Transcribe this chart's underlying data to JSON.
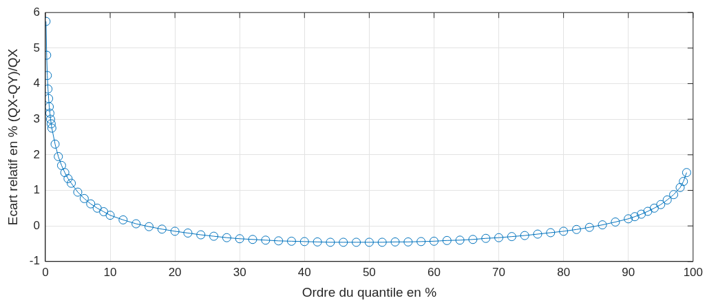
{
  "chart_data": {
    "type": "line",
    "xlabel": "Ordre du quantile en %",
    "ylabel": "Ecart relatif en % (QX-QY)/QX",
    "x": [
      0.1,
      0.2,
      0.3,
      0.4,
      0.5,
      0.6,
      0.7,
      0.8,
      0.9,
      1.0,
      1.5,
      2,
      2.5,
      3,
      3.5,
      4,
      5,
      6,
      7,
      8,
      9,
      10,
      12,
      14,
      16,
      18,
      20,
      22,
      24,
      26,
      28,
      30,
      32,
      34,
      36,
      38,
      40,
      42,
      44,
      46,
      48,
      50,
      52,
      54,
      56,
      58,
      60,
      62,
      64,
      66,
      68,
      70,
      72,
      74,
      76,
      78,
      80,
      82,
      84,
      86,
      88,
      90,
      91,
      92,
      93,
      94,
      95,
      96,
      97,
      98,
      98.5,
      99
    ],
    "series": [
      {
        "color": "#0072bd",
        "values": [
          5.75,
          4.8,
          4.23,
          3.85,
          3.58,
          3.35,
          3.17,
          3.0,
          2.87,
          2.75,
          2.3,
          1.95,
          1.7,
          1.5,
          1.33,
          1.2,
          0.95,
          0.77,
          0.62,
          0.5,
          0.4,
          0.3,
          0.17,
          0.06,
          -0.02,
          -0.09,
          -0.15,
          -0.2,
          -0.25,
          -0.29,
          -0.33,
          -0.36,
          -0.38,
          -0.4,
          -0.42,
          -0.43,
          -0.44,
          -0.45,
          -0.46,
          -0.46,
          -0.46,
          -0.46,
          -0.46,
          -0.45,
          -0.45,
          -0.44,
          -0.43,
          -0.41,
          -0.4,
          -0.38,
          -0.35,
          -0.33,
          -0.3,
          -0.27,
          -0.23,
          -0.19,
          -0.15,
          -0.1,
          -0.04,
          0.03,
          0.11,
          0.2,
          0.26,
          0.33,
          0.41,
          0.5,
          0.6,
          0.73,
          0.88,
          1.08,
          1.25,
          1.5
        ]
      }
    ],
    "xlim": [
      0,
      100
    ],
    "xticks": [
      0,
      10,
      20,
      30,
      40,
      50,
      60,
      70,
      80,
      90,
      100
    ],
    "ylim": [
      -1,
      6
    ],
    "yticks": [
      -1,
      0,
      1,
      2,
      3,
      4,
      5,
      6
    ],
    "grid": true,
    "legend": false,
    "marker": "circle",
    "line_style": "solid"
  }
}
